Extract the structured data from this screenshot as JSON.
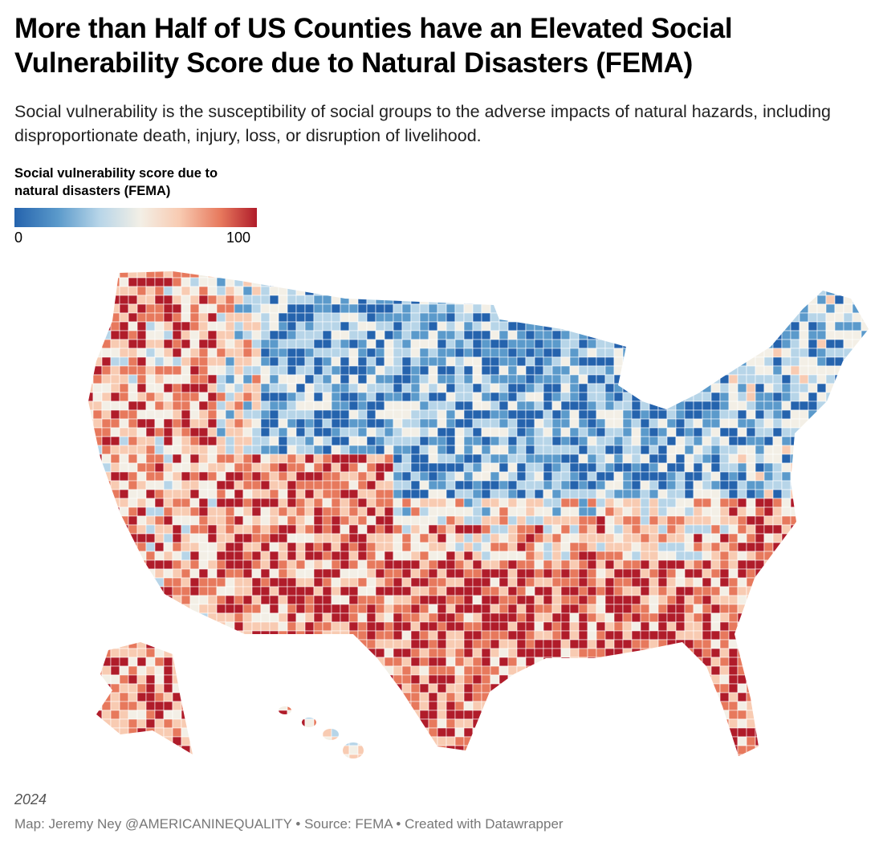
{
  "header": {
    "title": "More than Half of US Counties have an Elevated Social Vulnerability Score due to Natural Disasters (FEMA)",
    "subtitle": "Social vulnerability is the susceptibility of social groups to the adverse impacts of natural hazards, including disproportionate death, injury, loss, or disruption of livelihood."
  },
  "legend": {
    "title": "Social vulnerability score due to natural disasters (FEMA)",
    "min_label": "0",
    "max_label": "100",
    "colors": [
      "#2563ad",
      "#5b9acb",
      "#b7d5e8",
      "#f3efe6",
      "#f8cbb2",
      "#e7795d",
      "#b01c2a"
    ]
  },
  "footer": {
    "year": "2024",
    "credit": "Map: Jeremy Ney @AMERICANINEQUALITY • Source: FEMA • Created with Datawrapper"
  }
}
